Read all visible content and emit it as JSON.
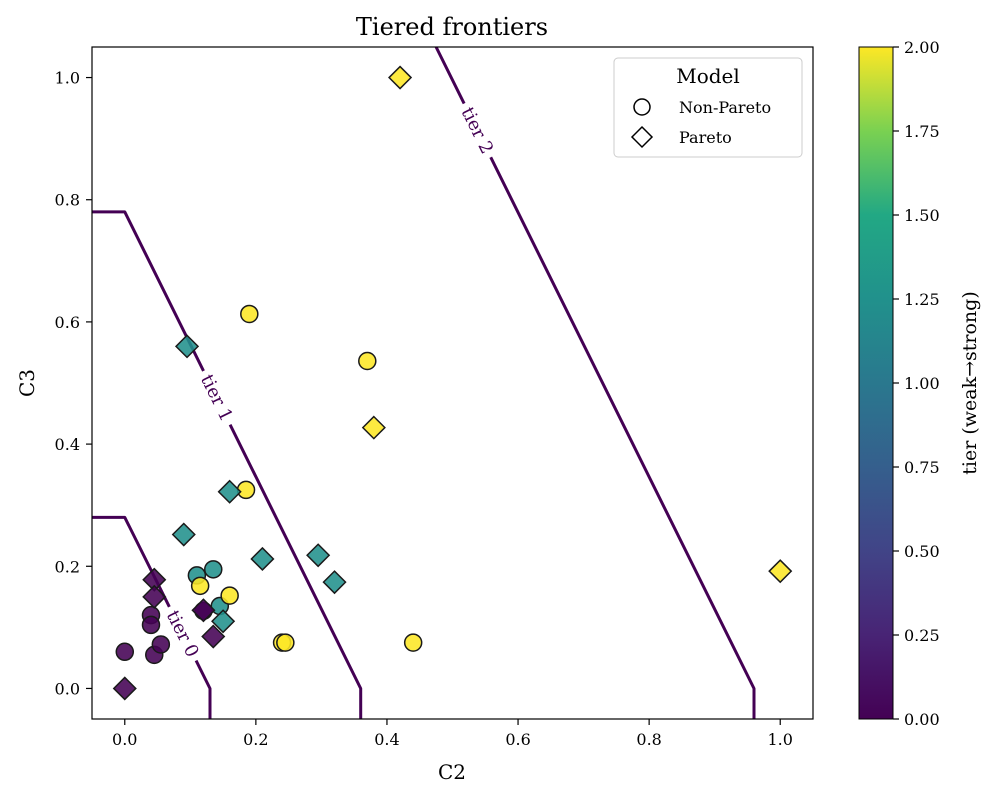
{
  "chart_data": {
    "type": "scatter",
    "title": "Tiered frontiers",
    "xlabel": "C2",
    "ylabel": "C3",
    "xlim": [
      -0.05,
      1.05
    ],
    "ylim": [
      -0.05,
      1.05
    ],
    "xticks": [
      "0.0",
      "0.2",
      "0.4",
      "0.6",
      "0.8",
      "1.0"
    ],
    "yticks": [
      "0.0",
      "0.2",
      "0.4",
      "0.6",
      "0.8",
      "1.0"
    ],
    "colorbar": {
      "label": "tier (weak→strong)",
      "range": [
        0,
        2
      ],
      "ticks": [
        "0.00",
        "0.25",
        "0.50",
        "0.75",
        "1.00",
        "1.25",
        "1.50",
        "1.75",
        "2.00"
      ]
    },
    "legend": {
      "title": "Model",
      "position": "top-right",
      "entries": [
        {
          "label": "Non-Pareto",
          "marker": "circle"
        },
        {
          "label": "Pareto",
          "marker": "diamond"
        }
      ]
    },
    "frontiers": [
      {
        "label": "tier 0",
        "points": [
          [
            -0.05,
            0.28
          ],
          [
            0.0,
            0.28
          ],
          [
            0.13,
            0.0
          ],
          [
            0.13,
            -0.05
          ]
        ]
      },
      {
        "label": "tier 1",
        "points": [
          [
            -0.05,
            0.78
          ],
          [
            0.0,
            0.78
          ],
          [
            0.36,
            0.0
          ],
          [
            0.36,
            -0.05
          ]
        ]
      },
      {
        "label": "tier 2",
        "points": [
          [
            0.475,
            1.05
          ],
          [
            0.96,
            0.0
          ],
          [
            0.96,
            -0.05
          ]
        ]
      }
    ],
    "series": [
      {
        "name": "Non-Pareto",
        "marker": "circle",
        "points": [
          {
            "x": 0.0,
            "y": 0.06,
            "tier": 0
          },
          {
            "x": 0.04,
            "y": 0.12,
            "tier": 0
          },
          {
            "x": 0.04,
            "y": 0.104,
            "tier": 0
          },
          {
            "x": 0.045,
            "y": 0.055,
            "tier": 0
          },
          {
            "x": 0.055,
            "y": 0.072,
            "tier": 0
          },
          {
            "x": 0.12,
            "y": 0.127,
            "tier": 0
          },
          {
            "x": 0.11,
            "y": 0.185,
            "tier": 1
          },
          {
            "x": 0.135,
            "y": 0.195,
            "tier": 1
          },
          {
            "x": 0.145,
            "y": 0.135,
            "tier": 1
          },
          {
            "x": 0.19,
            "y": 0.613,
            "tier": 2
          },
          {
            "x": 0.37,
            "y": 0.536,
            "tier": 2
          },
          {
            "x": 0.185,
            "y": 0.325,
            "tier": 2
          },
          {
            "x": 0.115,
            "y": 0.168,
            "tier": 2
          },
          {
            "x": 0.16,
            "y": 0.152,
            "tier": 2
          },
          {
            "x": 0.24,
            "y": 0.075,
            "tier": 2
          },
          {
            "x": 0.245,
            "y": 0.075,
            "tier": 2
          },
          {
            "x": 0.44,
            "y": 0.075,
            "tier": 2
          }
        ]
      },
      {
        "name": "Pareto",
        "marker": "diamond",
        "points": [
          {
            "x": 0.0,
            "y": 0.0,
            "tier": 0
          },
          {
            "x": 0.045,
            "y": 0.178,
            "tier": 0
          },
          {
            "x": 0.045,
            "y": 0.15,
            "tier": 0
          },
          {
            "x": 0.12,
            "y": 0.128,
            "tier": 0
          },
          {
            "x": 0.135,
            "y": 0.085,
            "tier": 0
          },
          {
            "x": 0.095,
            "y": 0.56,
            "tier": 1
          },
          {
            "x": 0.09,
            "y": 0.252,
            "tier": 1
          },
          {
            "x": 0.16,
            "y": 0.322,
            "tier": 1
          },
          {
            "x": 0.21,
            "y": 0.212,
            "tier": 1
          },
          {
            "x": 0.295,
            "y": 0.218,
            "tier": 1
          },
          {
            "x": 0.32,
            "y": 0.174,
            "tier": 1
          },
          {
            "x": 0.15,
            "y": 0.11,
            "tier": 1
          },
          {
            "x": 0.42,
            "y": 1.0,
            "tier": 2
          },
          {
            "x": 0.38,
            "y": 0.427,
            "tier": 2
          },
          {
            "x": 1.0,
            "y": 0.192,
            "tier": 2
          }
        ]
      }
    ]
  },
  "colors": {
    "frontier": "#440154",
    "tier0": "#440154",
    "tier1": "#21918c",
    "tier2": "#fde725",
    "marker_edge": "#1a1a1a"
  }
}
